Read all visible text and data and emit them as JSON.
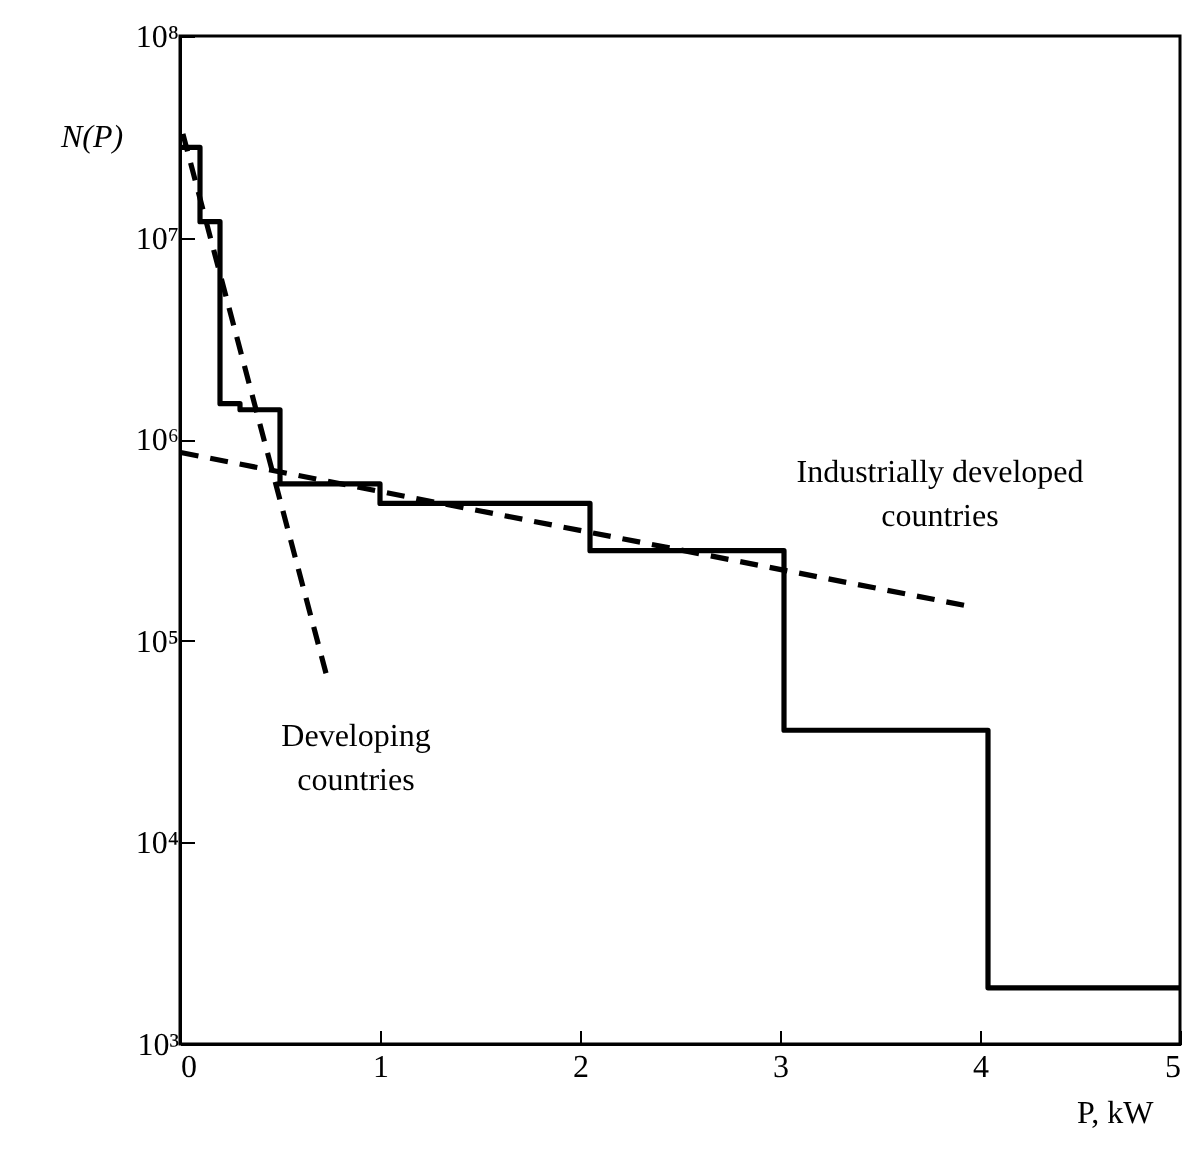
{
  "chart_data": {
    "type": "step",
    "xlabel": "P, kW",
    "ylabel": "N(P)",
    "log": "y",
    "grid": false,
    "xlim": [
      0,
      5
    ],
    "xticks": [
      0,
      1,
      2,
      3,
      4,
      5
    ],
    "ylim": [
      1000,
      100000000
    ],
    "yticks": [
      {
        "value": 1000,
        "label": "10³"
      },
      {
        "value": 10000,
        "label": "10⁴"
      },
      {
        "value": 100000,
        "label": "10⁵"
      },
      {
        "value": 1000000,
        "label": "10⁶"
      },
      {
        "value": 10000000,
        "label": "10⁷"
      },
      {
        "value": 100000000,
        "label": "10⁸"
      }
    ],
    "series": [
      {
        "color": "#000000",
        "line_style": "solid",
        "x": [
          0,
          0.1,
          0.2,
          0.3,
          0.5,
          1,
          2.05,
          3.02,
          4.04,
          5
        ],
        "values": [
          28000000,
          12000000,
          1500000,
          1400000,
          600000,
          480000,
          280000,
          36000,
          1900,
          1900
        ]
      },
      {
        "type": "line",
        "color": "#000000",
        "line_style": "dashed",
        "x": [
          0,
          0.73
        ],
        "values": [
          37000000,
          69000
        ]
      },
      {
        "type": "line",
        "color": "#000000",
        "line_style": "dashed",
        "x": [
          0,
          3.92
        ],
        "values": [
          860000,
          150000
        ]
      }
    ],
    "annotations": [
      "Industrially developed\n countries",
      "Developing\ncountries"
    ]
  }
}
